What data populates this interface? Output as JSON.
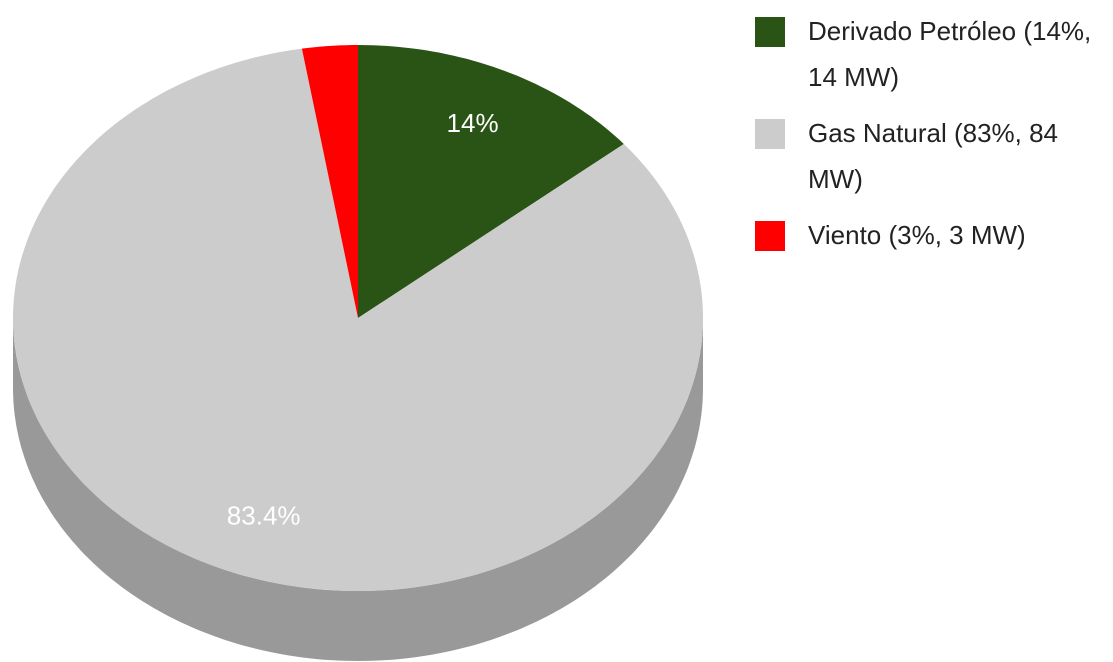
{
  "chart_data": {
    "type": "pie3d",
    "categories": [
      "Derivado Petróleo (14%, 14 MW)",
      "Gas Natural (83%, 84 MW)",
      "Viento (3%, 3 MW)"
    ],
    "values": [
      14,
      83.4,
      2.6
    ],
    "value_labels": [
      "14%",
      "83.4%",
      null
    ],
    "colors": [
      "#2a5316",
      "#cccccc",
      "#ff0000"
    ],
    "legend": "right"
  }
}
